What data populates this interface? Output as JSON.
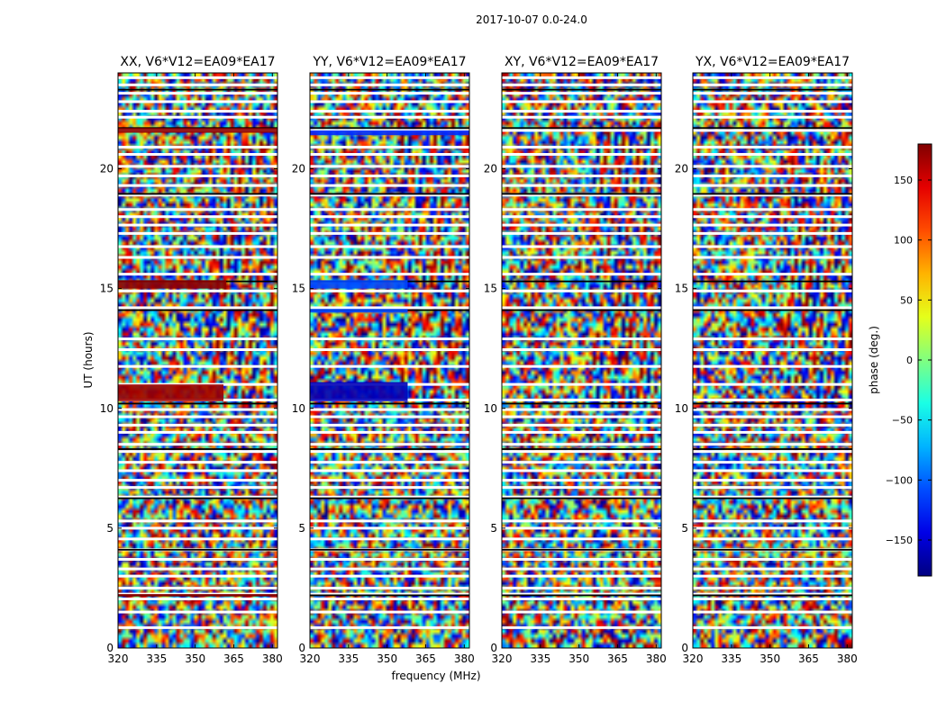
{
  "chart_data": {
    "type": "heatmap",
    "suptitle": "2017-10-07 0.0-24.0",
    "xlabel": "frequency (MHz)",
    "ylabel": "UT (hours)",
    "xlim": [
      320,
      382
    ],
    "ylim": [
      0,
      24
    ],
    "xticks": [
      320,
      335,
      350,
      365,
      380
    ],
    "yticks": [
      0,
      5,
      10,
      15,
      20
    ],
    "panels": [
      {
        "title": "XX, V6*V12=EA09*EA17",
        "polarization": "XX"
      },
      {
        "title": "YY, V6*V12=EA09*EA17",
        "polarization": "YY"
      },
      {
        "title": "XY, V6*V12=EA09*EA17",
        "polarization": "XY"
      },
      {
        "title": "YX, V6*V12=EA09*EA17",
        "polarization": "YX"
      }
    ],
    "colorbar": {
      "label": "phase (deg.)",
      "range": [
        -180,
        180
      ],
      "ticks": [
        150,
        100,
        50,
        0,
        -50,
        -100,
        -150
      ],
      "colormap": "jet"
    },
    "white_gap_hours": [
      0.85,
      1.5,
      2.05,
      2.25,
      2.5,
      3.0,
      3.3,
      3.7,
      4.1,
      4.55,
      5.0,
      5.3,
      6.3,
      6.7,
      7.0,
      7.4,
      7.75,
      8.2,
      8.5,
      9.0,
      9.3,
      9.65,
      9.95,
      10.35,
      11.0,
      11.75,
      12.45,
      12.9,
      14.2,
      14.9,
      15.6,
      16.3,
      16.75,
      17.3,
      17.65,
      18.0,
      18.3,
      18.9,
      19.3,
      19.7,
      20.1,
      20.6,
      20.9,
      21.6,
      22.15,
      22.4,
      22.8,
      23.15,
      23.5,
      23.8
    ],
    "black_line_hours": [
      2.2,
      4.1,
      6.25,
      8.3,
      10.2,
      14.1,
      15.3,
      18.95,
      21.7,
      23.3
    ],
    "bright_bands": [
      {
        "panel": "XX",
        "from_hour": 10.3,
        "to_hour": 11.0,
        "freq_to": 361,
        "phase": 170
      },
      {
        "panel": "XX",
        "from_hour": 15.0,
        "to_hour": 15.35,
        "freq_to": 362,
        "phase": 175
      },
      {
        "panel": "XX",
        "from_hour": 21.5,
        "to_hour": 21.7,
        "freq_to": 382,
        "phase": 175
      },
      {
        "panel": "XX",
        "from_hour": 2.15,
        "to_hour": 2.25,
        "freq_to": 382,
        "phase": 175
      },
      {
        "panel": "YY",
        "from_hour": 10.3,
        "to_hour": 11.1,
        "freq_to": 358,
        "phase": -160
      },
      {
        "panel": "YY",
        "from_hour": 15.0,
        "to_hour": 15.35,
        "freq_to": 358,
        "phase": -110
      },
      {
        "panel": "YY",
        "from_hour": 14.0,
        "to_hour": 14.15,
        "freq_to": 358,
        "phase": -110
      },
      {
        "panel": "YY",
        "from_hour": 21.4,
        "to_hour": 21.6,
        "freq_to": 382,
        "phase": -120
      }
    ]
  }
}
